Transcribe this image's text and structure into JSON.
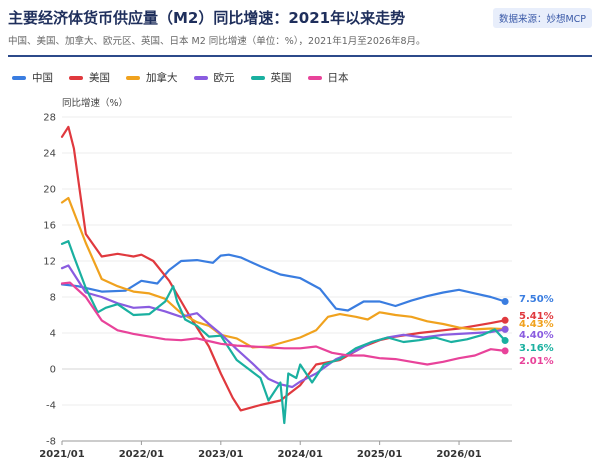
{
  "header": {
    "title": "主要经济体货币供应量（M2）同比增速：2021年以来走势",
    "subtitle": "中国、美国、加拿大、欧元区、英国、日本 M2 同比增速（单位：%），2021年1月至2026年8月。",
    "source": "数据来源：妙想MCP"
  },
  "colors": {
    "中国": "#3a7de0",
    "美国": "#e0393e",
    "加拿大": "#f0a21e",
    "欧元": "#8a5ce0",
    "英国": "#1ab0a0",
    "日本": "#e8439a"
  },
  "chart_data": {
    "type": "line",
    "ylabel": "同比增速（%）",
    "xlabel": "",
    "ylim": [
      -8,
      28
    ],
    "yticks": [
      -8,
      -4,
      0,
      4,
      8,
      12,
      16,
      20,
      24,
      28
    ],
    "xlim": [
      2021.0,
      2026.667
    ],
    "xticks": [
      {
        "x": 2021.0,
        "label": "2021/01"
      },
      {
        "x": 2022.0,
        "label": "2022/01"
      },
      {
        "x": 2023.0,
        "label": "2023/01"
      },
      {
        "x": 2024.0,
        "label": "2024/01"
      },
      {
        "x": 2025.0,
        "label": "2025/01"
      },
      {
        "x": 2026.0,
        "label": "2026/01"
      }
    ],
    "series": [
      {
        "name": "中国",
        "end_label": "7.50%",
        "x": [
          2021.0,
          2021.2,
          2021.5,
          2021.8,
          2022.0,
          2022.2,
          2022.35,
          2022.5,
          2022.7,
          2022.9,
          2023.0,
          2023.1,
          2023.25,
          2023.5,
          2023.75,
          2024.0,
          2024.25,
          2024.45,
          2024.6,
          2024.8,
          2025.0,
          2025.2,
          2025.4,
          2025.6,
          2025.8,
          2026.0,
          2026.2,
          2026.4,
          2026.58
        ],
        "y": [
          9.4,
          9.2,
          8.6,
          8.7,
          9.8,
          9.5,
          11.0,
          12.0,
          12.1,
          11.8,
          12.6,
          12.7,
          12.4,
          11.4,
          10.5,
          10.1,
          8.9,
          6.7,
          6.5,
          7.5,
          7.5,
          7.0,
          7.6,
          8.1,
          8.5,
          8.8,
          8.4,
          8.0,
          7.5
        ]
      },
      {
        "name": "美国",
        "end_label": "5.41%",
        "x": [
          2021.0,
          2021.08,
          2021.15,
          2021.3,
          2021.5,
          2021.7,
          2021.9,
          2022.0,
          2022.15,
          2022.35,
          2022.6,
          2022.85,
          2023.0,
          2023.15,
          2023.25,
          2023.5,
          2023.75,
          2024.0,
          2024.2,
          2024.5,
          2024.8,
          2025.0,
          2025.2,
          2025.5,
          2025.8,
          2026.0,
          2026.2,
          2026.4,
          2026.58
        ],
        "y": [
          25.8,
          26.9,
          24.5,
          15.0,
          12.5,
          12.8,
          12.5,
          12.7,
          12.0,
          9.8,
          6.0,
          2.5,
          -0.5,
          -3.2,
          -4.6,
          -4.0,
          -3.5,
          -1.8,
          0.5,
          1.0,
          2.5,
          3.2,
          3.6,
          4.0,
          4.3,
          4.5,
          4.8,
          5.1,
          5.41
        ]
      },
      {
        "name": "加拿大",
        "end_label": "4.43%",
        "x": [
          2021.0,
          2021.08,
          2021.3,
          2021.5,
          2021.7,
          2021.9,
          2022.1,
          2022.3,
          2022.5,
          2022.7,
          2022.85,
          2023.0,
          2023.2,
          2023.4,
          2023.6,
          2023.8,
          2024.0,
          2024.2,
          2024.35,
          2024.5,
          2024.7,
          2024.85,
          2025.0,
          2025.2,
          2025.4,
          2025.6,
          2025.8,
          2026.0,
          2026.2,
          2026.4,
          2026.58
        ],
        "y": [
          18.5,
          19.0,
          14.0,
          10.0,
          9.2,
          8.6,
          8.4,
          7.8,
          6.2,
          5.2,
          4.8,
          3.8,
          3.4,
          2.4,
          2.5,
          3.0,
          3.5,
          4.3,
          5.8,
          6.1,
          5.8,
          5.5,
          6.3,
          6.0,
          5.8,
          5.3,
          5.0,
          4.6,
          4.4,
          4.5,
          4.43
        ]
      },
      {
        "name": "欧元",
        "end_label": "4.40%",
        "x": [
          2021.0,
          2021.08,
          2021.3,
          2021.5,
          2021.7,
          2021.9,
          2022.1,
          2022.3,
          2022.5,
          2022.7,
          2022.85,
          2023.0,
          2023.2,
          2023.4,
          2023.6,
          2023.75,
          2023.9,
          2024.0,
          2024.2,
          2024.45,
          2024.7,
          2024.9,
          2025.1,
          2025.3,
          2025.55,
          2025.8,
          2026.0,
          2026.2,
          2026.4,
          2026.58
        ],
        "y": [
          11.2,
          11.5,
          8.5,
          8.0,
          7.3,
          6.8,
          6.9,
          6.4,
          5.8,
          6.2,
          5.0,
          3.9,
          2.2,
          0.6,
          -1.1,
          -1.7,
          -2.0,
          -1.4,
          -0.5,
          1.1,
          2.0,
          3.0,
          3.5,
          3.8,
          3.5,
          3.8,
          3.9,
          4.0,
          4.1,
          4.4
        ]
      },
      {
        "name": "英国",
        "end_label": "3.16%",
        "x": [
          2021.0,
          2021.08,
          2021.15,
          2021.3,
          2021.45,
          2021.55,
          2021.7,
          2021.9,
          2022.1,
          2022.3,
          2022.4,
          2022.45,
          2022.55,
          2022.7,
          2022.85,
          2023.0,
          2023.2,
          2023.35,
          2023.5,
          2023.6,
          2023.75,
          2023.8,
          2023.85,
          2023.95,
          2024.0,
          2024.15,
          2024.3,
          2024.5,
          2024.7,
          2024.9,
          2025.1,
          2025.3,
          2025.5,
          2025.7,
          2025.9,
          2026.1,
          2026.3,
          2026.45,
          2026.58
        ],
        "y": [
          13.9,
          14.2,
          12.5,
          9.0,
          6.3,
          6.8,
          7.2,
          6.0,
          6.1,
          7.5,
          9.2,
          7.5,
          5.5,
          4.8,
          3.6,
          3.7,
          1.0,
          0.0,
          -1.0,
          -3.5,
          -1.5,
          -6.0,
          -0.5,
          -1.0,
          0.5,
          -1.5,
          0.5,
          1.1,
          2.3,
          3.0,
          3.5,
          3.0,
          3.2,
          3.5,
          3.0,
          3.3,
          3.8,
          4.4,
          3.16
        ]
      },
      {
        "name": "日本",
        "end_label": "2.01%",
        "x": [
          2021.0,
          2021.1,
          2021.3,
          2021.5,
          2021.7,
          2021.9,
          2022.1,
          2022.3,
          2022.5,
          2022.7,
          2022.9,
          2023.0,
          2023.2,
          2023.4,
          2023.6,
          2023.8,
          2024.0,
          2024.2,
          2024.4,
          2024.6,
          2024.8,
          2025.0,
          2025.2,
          2025.4,
          2025.6,
          2025.8,
          2026.0,
          2026.2,
          2026.4,
          2026.58
        ],
        "y": [
          9.5,
          9.6,
          8.0,
          5.4,
          4.3,
          3.9,
          3.6,
          3.3,
          3.2,
          3.4,
          3.0,
          2.8,
          2.6,
          2.5,
          2.4,
          2.3,
          2.3,
          2.5,
          1.8,
          1.5,
          1.5,
          1.2,
          1.1,
          0.8,
          0.5,
          0.8,
          1.2,
          1.5,
          2.2,
          2.01
        ]
      }
    ]
  }
}
